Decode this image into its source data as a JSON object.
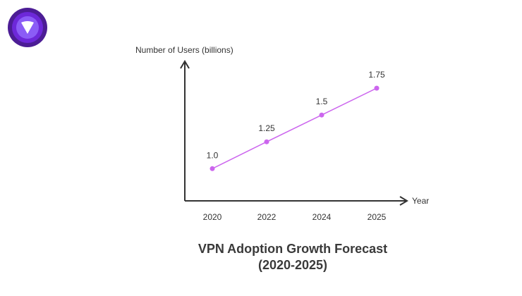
{
  "logo": {
    "icon": "shield-logo-icon",
    "colors": {
      "outer": "#4c1d95",
      "middle": "#6d28d9",
      "inner": "#8b5cf6",
      "mark": "#ffffff"
    }
  },
  "chart_data": {
    "type": "line",
    "title": "VPN Adoption Growth Forecast\n(2020-2025)",
    "xlabel": "Year",
    "ylabel": "Number of Users (billions)",
    "categories": [
      "2020",
      "2022",
      "2024",
      "2025"
    ],
    "series": [
      {
        "values": [
          1.0,
          1.25,
          1.5,
          1.75
        ],
        "labels": [
          "1.0",
          "1.25",
          "1.5",
          "1.75"
        ],
        "color": "#cc66ee"
      }
    ],
    "ylim": [
      0.7,
      2.0
    ],
    "grid": false,
    "legend": "none",
    "axis_color": "#333333"
  }
}
